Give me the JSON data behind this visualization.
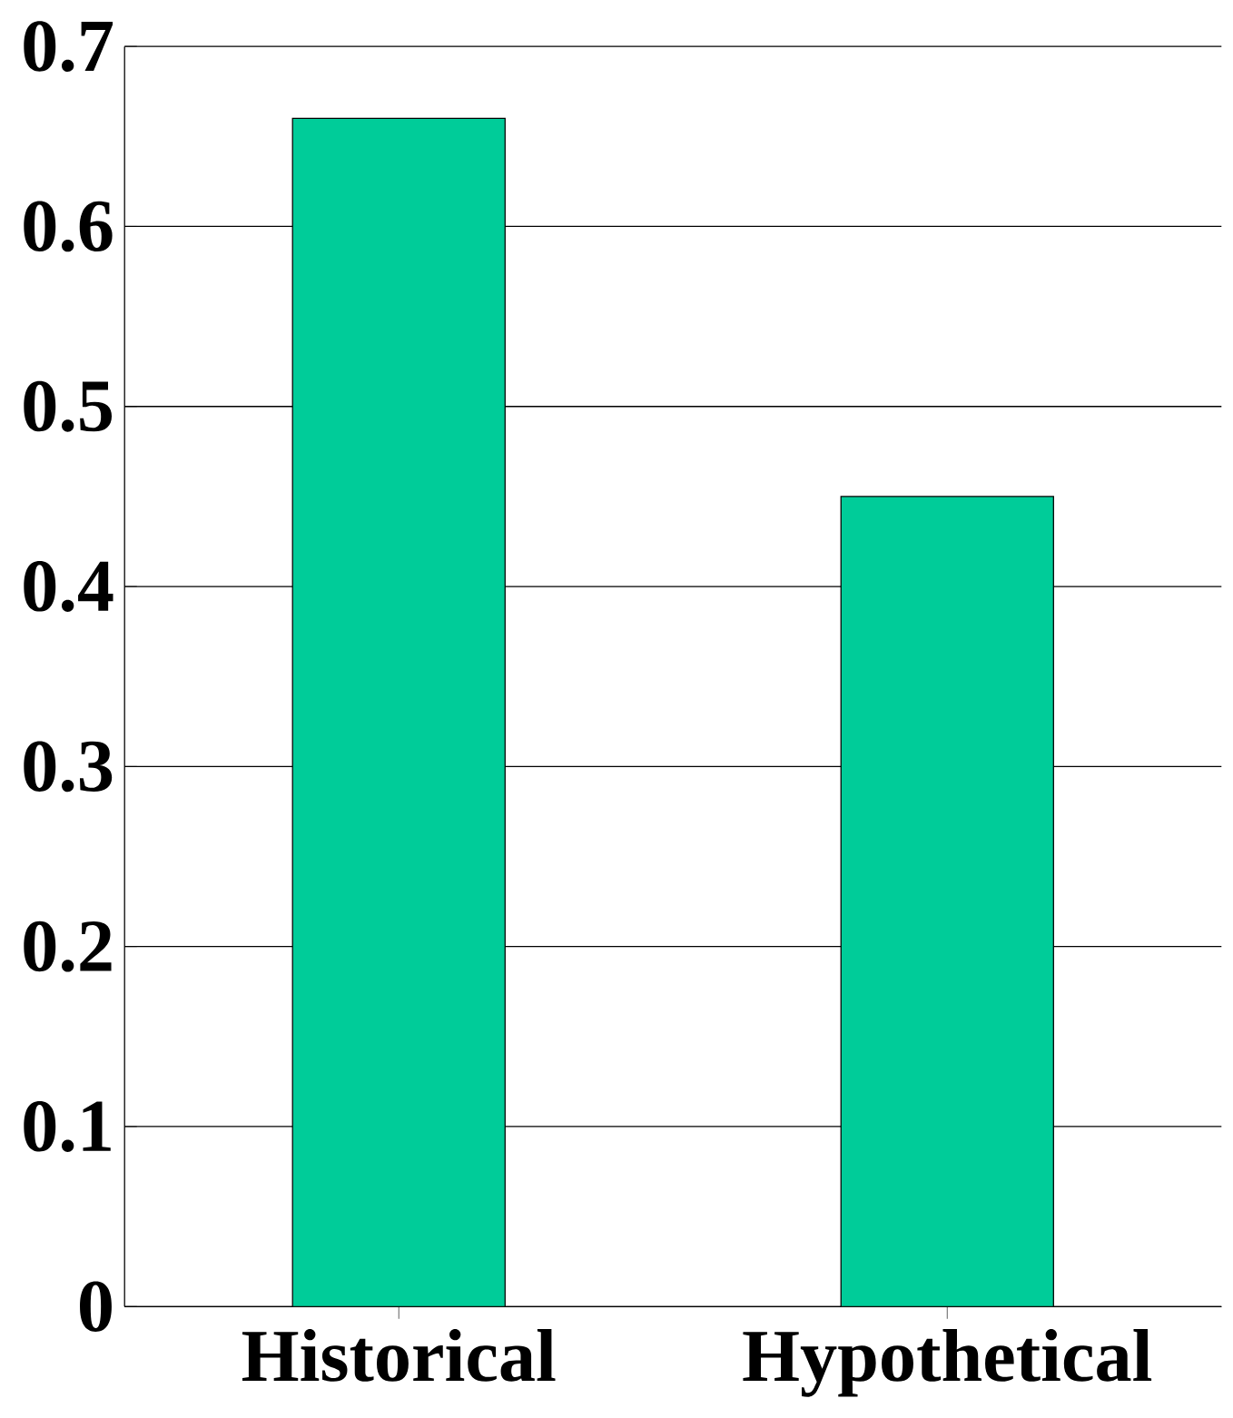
{
  "chart_data": {
    "type": "bar",
    "categories": [
      "Historical",
      "Hypothetical"
    ],
    "values": [
      0.66,
      0.45
    ],
    "color": "#00cc99",
    "ylim": [
      0,
      0.7
    ],
    "yticks": [
      0,
      0.1,
      0.2,
      0.3,
      0.4,
      0.5,
      0.6,
      0.7
    ],
    "grid": "y"
  }
}
